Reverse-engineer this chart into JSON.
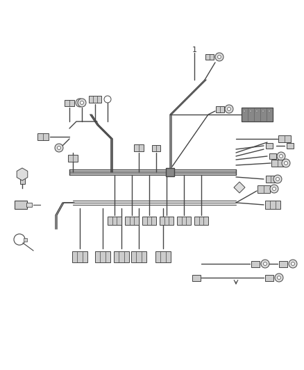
{
  "bg_color": "#ffffff",
  "wire_color": "#444444",
  "lw": 1.0,
  "lw_thick": 1.8,
  "fig_width": 4.38,
  "fig_height": 5.33,
  "dpi": 100
}
